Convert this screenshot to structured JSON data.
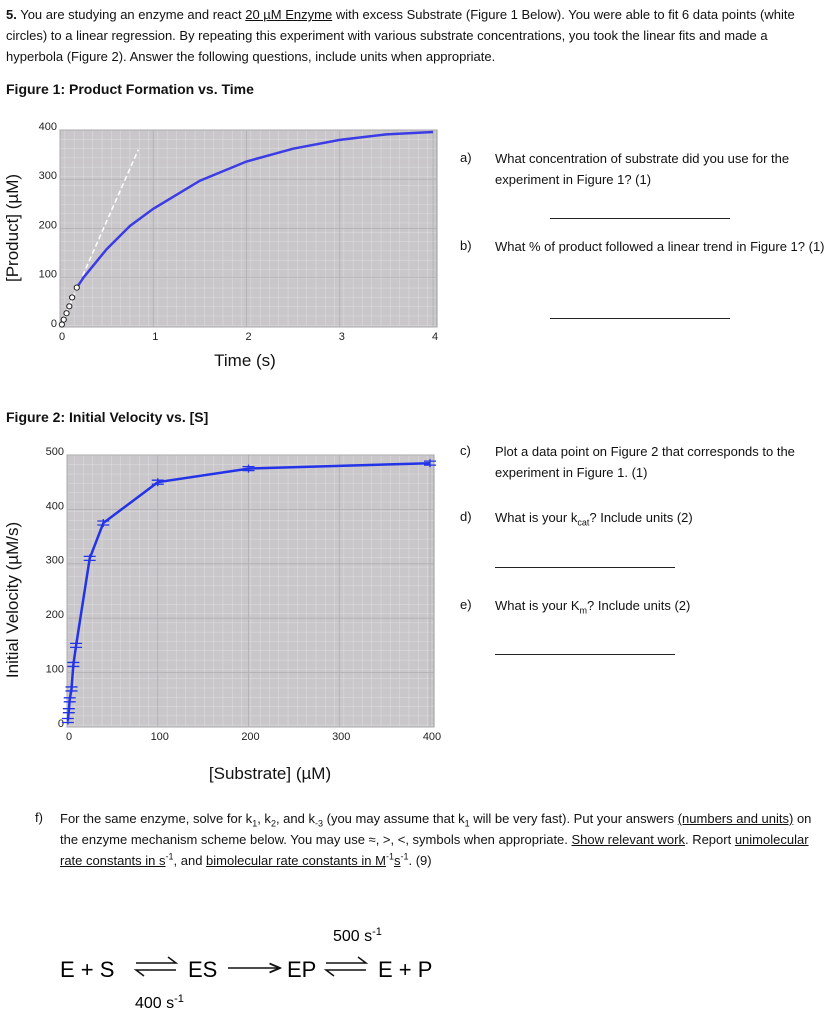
{
  "intro": {
    "runs": [
      {
        "text": "5.",
        "format": "bold"
      },
      {
        "text": " You are studying an enzyme and react "
      },
      {
        "text": "20 µM Enzyme",
        "format": "underline"
      },
      {
        "text": " with excess Substrate (Figure 1 Below). You were able to fit 6 data points (white circles) to a linear regression. By repeating this experiment with various substrate concentrations, you took the linear fits and made a hyperbola (Figure 2). Answer the following questions, include units when appropriate."
      }
    ]
  },
  "figure1": {
    "title": "Figure 1: Product Formation vs. Time",
    "chart": {
      "type": "line",
      "x_label": "Time (s)",
      "y_label": "[Product] (µM)",
      "xlim": [
        0,
        4
      ],
      "ylim": [
        0,
        400
      ],
      "xticks": [
        0,
        1,
        2,
        3,
        4
      ],
      "yticks": [
        0,
        100,
        200,
        300,
        400
      ],
      "grid": true,
      "series": [
        {
          "style": "dashed",
          "color": "#ffffff",
          "x": [
            0,
            0.84
          ],
          "values": [
            0,
            360
          ]
        },
        {
          "style": "line",
          "color": "#3c3ce6",
          "x": [
            0.18,
            0.25,
            0.5,
            0.75,
            1,
            1.5,
            2,
            2.5,
            3,
            3.5,
            4
          ],
          "values": [
            80,
            100,
            158,
            205,
            240,
            297,
            336,
            362,
            380,
            391,
            396
          ]
        },
        {
          "style": "circle",
          "color": "#ffffff",
          "x": [
            0.02,
            0.04,
            0.07,
            0.1,
            0.13,
            0.18
          ],
          "values": [
            5,
            15,
            28,
            42,
            60,
            80
          ]
        }
      ]
    }
  },
  "figure2": {
    "title": "Figure 2: Initial Velocity vs. [S]",
    "chart": {
      "type": "line",
      "x_label": "[Substrate] (µM)",
      "y_label": "Initial Velocity (µM/s)",
      "xlim": [
        0,
        400
      ],
      "ylim": [
        0,
        500
      ],
      "xticks": [
        0,
        100,
        200,
        300,
        400
      ],
      "yticks": [
        0,
        100,
        200,
        300,
        400,
        500
      ],
      "grid": true,
      "series": [
        {
          "style": "errorbar-line",
          "color": "#2233e8",
          "x": [
            1,
            2,
            3,
            5,
            7,
            10,
            25,
            40,
            100,
            200,
            400
          ],
          "values": [
            12,
            30,
            50,
            70,
            115,
            150,
            310,
            375,
            450,
            475,
            485
          ]
        }
      ]
    }
  },
  "questions": [
    {
      "label": "a)",
      "runs": [
        {
          "text": "What concentration of substrate did you use for the experiment in Figure 1? (1)"
        }
      ],
      "answer_line": true
    },
    {
      "label": "b)",
      "runs": [
        {
          "text": "What % of product followed a linear trend in Figure 1? (1)"
        }
      ],
      "answer_line": true
    },
    {
      "label": "c)",
      "runs": [
        {
          "text": "Plot a data point on Figure 2 that corresponds to the experiment in Figure 1. (1)"
        }
      ],
      "answer_line": false
    },
    {
      "label": "d)",
      "runs": [
        {
          "text": "What is your k"
        },
        {
          "text": "cat",
          "format": "sub"
        },
        {
          "text": "? Include units (2)"
        }
      ],
      "answer_line": true
    },
    {
      "label": "e)",
      "runs": [
        {
          "text": "What is your K"
        },
        {
          "text": "m",
          "format": "sub"
        },
        {
          "text": "? Include units (2)"
        }
      ],
      "answer_line": true
    }
  ],
  "part_f": {
    "label": "f)",
    "runs": [
      {
        "text": "For the same enzyme, solve for k"
      },
      {
        "text": "1",
        "format": "sub"
      },
      {
        "text": ", k"
      },
      {
        "text": "2",
        "format": "sub"
      },
      {
        "text": ", and k"
      },
      {
        "text": "-3",
        "format": "sub"
      },
      {
        "text": " (you may assume that k"
      },
      {
        "text": "1",
        "format": "sub"
      },
      {
        "text": " will be very fast). Put your answers "
      },
      {
        "text": "(numbers and units)",
        "format": "underline"
      },
      {
        "text": " on the enzyme mechanism scheme below. You may use ≈, >, <, symbols when appropriate. "
      },
      {
        "text": "Show relevant work",
        "format": "underline"
      },
      {
        "text": ". Report "
      },
      {
        "text": "unimolecular rate constants in s",
        "format": "underline"
      },
      {
        "text": "-1",
        "format": "sup"
      },
      {
        "text": ", and "
      },
      {
        "text": "bimolecular rate constants in M",
        "format": "underline"
      },
      {
        "text": "-1",
        "format": "sup"
      },
      {
        "text": "s",
        "format": "underline"
      },
      {
        "text": "-1",
        "format": "sup"
      },
      {
        "text": ". (9)"
      }
    ]
  },
  "scheme": {
    "left": "E + S",
    "complex1": "ES",
    "complex2": "EP",
    "right": "E + P",
    "k_top": [
      {
        "text": "500 s"
      },
      {
        "text": "-1",
        "format": "sup"
      }
    ],
    "k_bottom": [
      {
        "text": "400 s"
      },
      {
        "text": "-1",
        "format": "sup"
      }
    ]
  }
}
